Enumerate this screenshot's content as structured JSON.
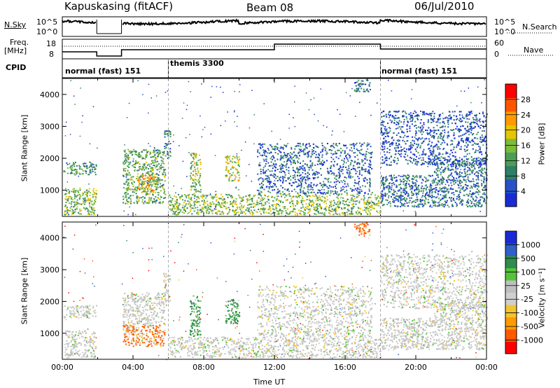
{
  "header": {
    "station": "Kapuskasing (fitACF)",
    "beam": "Beam 08",
    "date": "06/Jul/2010"
  },
  "summary_panels": {
    "nsky_label": "N.Sky",
    "nsearch_label": "N.Search",
    "nsky_ticks": [
      "10^5",
      "10^0"
    ],
    "nsearch_ticks": [
      "10^5",
      "10^0"
    ],
    "freq_label_line1": "Freq.",
    "freq_label_line2": "[MHz]",
    "freq_ticks": [
      "18",
      "8"
    ],
    "nave_label": "Nave",
    "nave_ticks": [
      "60",
      "0"
    ],
    "cpid_label": "CPID",
    "cpid_segments": [
      {
        "label": "normal (fast) 151",
        "start_hour": 0,
        "end_hour": 6
      },
      {
        "label": "themis 3300",
        "start_hour": 6,
        "end_hour": 18
      },
      {
        "label": "normal (fast) 151",
        "start_hour": 18,
        "end_hour": 24
      }
    ]
  },
  "colors": {
    "power_scale": [
      "#1a2bd6",
      "#2850c8",
      "#2f7f66",
      "#4c9e57",
      "#7dbb3a",
      "#e6c400",
      "#ff9a00",
      "#ff5500",
      "#ff0000"
    ],
    "velocity_scale": [
      "#ff0000",
      "#ff5a00",
      "#ff9a00",
      "#f4c430",
      "#cfcfcf",
      "#bfbfbf",
      "#55c43a",
      "#2f8c4f",
      "#2f5fc8",
      "#1a2bd6"
    ]
  },
  "chart_data": [
    {
      "type": "heatmap",
      "title": "",
      "xlabel": "Time UT",
      "ylabel": "Slant Range [km]",
      "x_ticks": [
        "00:00",
        "04:00",
        "08:00",
        "12:00",
        "16:00",
        "20:00",
        "00:00"
      ],
      "xlim_hours": [
        0,
        24
      ],
      "ylim": [
        180,
        4500
      ],
      "y_ticks": [
        1000,
        2000,
        3000,
        4000
      ],
      "colorbar_label": "Power [dB]",
      "colorbar_ticks": [
        4,
        8,
        12,
        16,
        20,
        24,
        28
      ],
      "colorbar_range": [
        0,
        30
      ],
      "data_gap_hours": [
        2.0,
        3.3
      ],
      "regions": [
        {
          "t0": 0.05,
          "t1": 1.9,
          "r0": 1500,
          "r1": 1900,
          "level": 10
        },
        {
          "t0": 0.1,
          "t1": 1.9,
          "r0": 250,
          "r1": 1100,
          "level": 14
        },
        {
          "t0": 3.4,
          "t1": 5.8,
          "r0": 600,
          "r1": 2300,
          "level": 12
        },
        {
          "t0": 4.2,
          "t1": 5.2,
          "r0": 900,
          "r1": 1500,
          "level": 20
        },
        {
          "t0": 5.7,
          "t1": 6.1,
          "r0": 2000,
          "r1": 2900,
          "level": 8
        },
        {
          "t0": 6.0,
          "t1": 18.0,
          "r0": 250,
          "r1": 900,
          "level": 14
        },
        {
          "t0": 7.2,
          "t1": 7.8,
          "r0": 900,
          "r1": 2200,
          "level": 15
        },
        {
          "t0": 9.2,
          "t1": 10.0,
          "r0": 1300,
          "r1": 2100,
          "level": 16
        },
        {
          "t0": 11.0,
          "t1": 17.5,
          "r0": 900,
          "r1": 2500,
          "level": 6
        },
        {
          "t0": 18.0,
          "t1": 24.0,
          "r0": 500,
          "r1": 1500,
          "level": 7
        },
        {
          "t0": 21.0,
          "t1": 24.0,
          "r0": 1500,
          "r1": 2000,
          "level": 8
        },
        {
          "t0": 18.0,
          "t1": 24.0,
          "r0": 1800,
          "r1": 3500,
          "level": 5
        },
        {
          "t0": 16.5,
          "t1": 17.4,
          "r0": 4100,
          "r1": 4500,
          "level": 6
        }
      ]
    },
    {
      "type": "heatmap",
      "title": "",
      "xlabel": "Time UT",
      "ylabel": "Slant Range [km]",
      "x_ticks": [
        "00:00",
        "04:00",
        "08:00",
        "12:00",
        "16:00",
        "20:00",
        "00:00"
      ],
      "xlim_hours": [
        0,
        24
      ],
      "ylim": [
        180,
        4500
      ],
      "y_ticks": [
        1000,
        2000,
        3000,
        4000
      ],
      "colorbar_label": "Velocity [m s⁻¹]",
      "colorbar_ticks": [
        "1000",
        "500",
        "100",
        "25",
        "-25",
        "-100",
        "-500",
        "-1000"
      ],
      "colorbar_range": [
        -1200,
        1200
      ],
      "data_gap_hours": [
        2.0,
        3.3
      ],
      "regions": [
        {
          "t0": 0.05,
          "t1": 1.9,
          "r0": 1500,
          "r1": 1900,
          "level": 0
        },
        {
          "t0": 0.1,
          "t1": 1.9,
          "r0": 250,
          "r1": 1100,
          "level": 0
        },
        {
          "t0": 3.4,
          "t1": 5.8,
          "r0": 600,
          "r1": 1300,
          "level": -120
        },
        {
          "t0": 3.4,
          "t1": 5.8,
          "r0": 1300,
          "r1": 2300,
          "level": 0
        },
        {
          "t0": 5.7,
          "t1": 6.1,
          "r0": 2000,
          "r1": 2900,
          "level": 0
        },
        {
          "t0": 6.0,
          "t1": 18.0,
          "r0": 250,
          "r1": 900,
          "level": 0
        },
        {
          "t0": 7.2,
          "t1": 7.8,
          "r0": 900,
          "r1": 2200,
          "level": 150
        },
        {
          "t0": 9.2,
          "t1": 10.0,
          "r0": 1300,
          "r1": 2100,
          "level": 150
        },
        {
          "t0": 11.0,
          "t1": 17.5,
          "r0": 900,
          "r1": 2500,
          "level": 0
        },
        {
          "t0": 18.0,
          "t1": 24.0,
          "r0": 500,
          "r1": 1500,
          "level": 0
        },
        {
          "t0": 21.0,
          "t1": 24.0,
          "r0": 1500,
          "r1": 2000,
          "level": 0
        },
        {
          "t0": 18.0,
          "t1": 24.0,
          "r0": 1800,
          "r1": 3500,
          "level": 0
        },
        {
          "t0": 16.5,
          "t1": 17.4,
          "r0": 4100,
          "r1": 4500,
          "level": -200
        }
      ]
    }
  ]
}
